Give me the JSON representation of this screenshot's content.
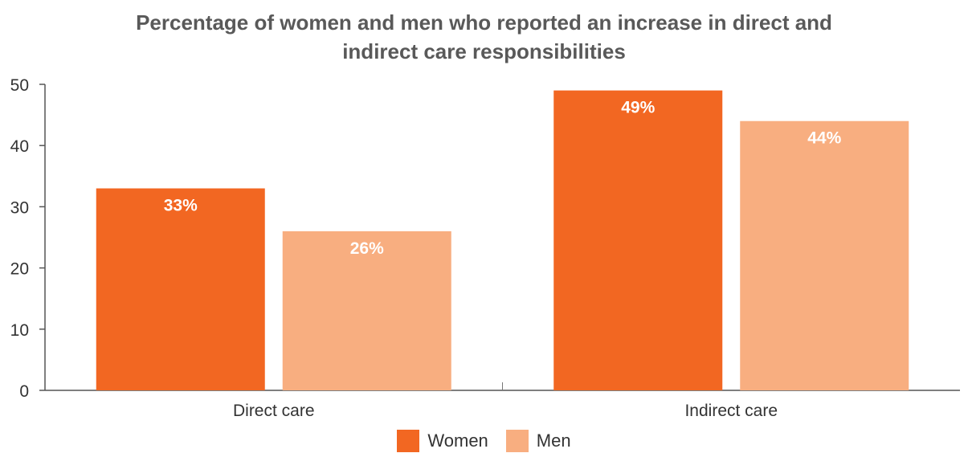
{
  "chart_data": {
    "type": "bar",
    "title_lines": [
      "Percentage of women and men who reported an increase in direct and",
      "indirect care responsibilities"
    ],
    "categories": [
      "Direct care",
      "Indirect care"
    ],
    "series": [
      {
        "name": "Women",
        "values": [
          33,
          49
        ],
        "labels": [
          "33%",
          "49%"
        ],
        "color": "#F26722"
      },
      {
        "name": "Men",
        "values": [
          26,
          44
        ],
        "labels": [
          "26%",
          "44%"
        ],
        "color": "#F8AE80"
      }
    ],
    "yticks": [
      "0",
      "10",
      "20",
      "30",
      "40",
      "50"
    ],
    "ylim": [
      0,
      50
    ],
    "grid": false,
    "legend_position": "bottom"
  }
}
